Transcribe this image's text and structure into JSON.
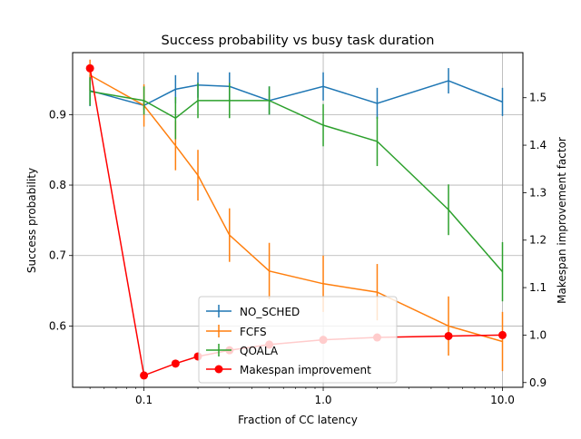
{
  "chart_data": {
    "type": "line",
    "title": "Success probability vs busy task duration",
    "xlabel": "Fraction of CC latency",
    "ylabel": "Success probability",
    "y2label": "Makespan improvement factor",
    "xscale": "log",
    "xlim": [
      0.04,
      13
    ],
    "ylim": [
      0.513,
      0.988
    ],
    "y2lim": [
      0.89,
      1.595
    ],
    "grid": true,
    "legend_position": "lower-center",
    "x_ticks": [
      {
        "value": 0.1,
        "label": "0.1"
      },
      {
        "value": 1.0,
        "label": "1.0"
      },
      {
        "value": 10.0,
        "label": "10.0"
      }
    ],
    "y_ticks": [
      {
        "value": 0.6,
        "label": "0.6"
      },
      {
        "value": 0.7,
        "label": "0.7"
      },
      {
        "value": 0.8,
        "label": "0.8"
      },
      {
        "value": 0.9,
        "label": "0.9"
      }
    ],
    "y2_ticks": [
      {
        "value": 0.9,
        "label": "0.9"
      },
      {
        "value": 1.0,
        "label": "1.0"
      },
      {
        "value": 1.1,
        "label": "1.1"
      },
      {
        "value": 1.2,
        "label": "1.2"
      },
      {
        "value": 1.3,
        "label": "1.3"
      },
      {
        "value": 1.4,
        "label": "1.4"
      },
      {
        "value": 1.5,
        "label": "1.5"
      }
    ],
    "x": [
      0.05,
      0.1,
      0.15,
      0.2,
      0.3,
      0.5,
      1.0,
      2.0,
      5.0,
      10.0
    ],
    "series": [
      {
        "name": "NO_SCHED",
        "color": "#1f77b4",
        "axis": "left",
        "marker": "errorbar",
        "values": [
          0.934,
          0.913,
          0.936,
          0.942,
          0.94,
          0.92,
          0.94,
          0.916,
          0.948,
          0.918
        ],
        "errors": [
          0.022,
          0.006,
          0.02,
          0.018,
          0.02,
          0.02,
          0.02,
          0.022,
          0.018,
          0.02
        ]
      },
      {
        "name": "FCFS",
        "color": "#ff7f0e",
        "axis": "left",
        "marker": "errorbar",
        "values": [
          0.956,
          0.913,
          0.856,
          0.814,
          0.729,
          0.678,
          0.66,
          0.648,
          0.6,
          0.578
        ],
        "errors": [
          0.022,
          0.03,
          0.035,
          0.036,
          0.038,
          0.04,
          0.04,
          0.04,
          0.042,
          0.042
        ]
      },
      {
        "name": "QOALA",
        "color": "#2ca02c",
        "axis": "left",
        "marker": "errorbar",
        "values": [
          0.933,
          0.92,
          0.895,
          0.92,
          0.92,
          0.92,
          0.885,
          0.862,
          0.765,
          0.677
        ],
        "errors": [
          0.02,
          0.02,
          0.03,
          0.025,
          0.025,
          0.02,
          0.03,
          0.035,
          0.036,
          0.042
        ]
      },
      {
        "name": "Makespan improvement",
        "color": "#ff0000",
        "axis": "right",
        "marker": "circle",
        "values": [
          1.562,
          0.915,
          0.94,
          0.955,
          0.968,
          0.98,
          0.99,
          0.995,
          0.998,
          1.0
        ]
      }
    ]
  }
}
